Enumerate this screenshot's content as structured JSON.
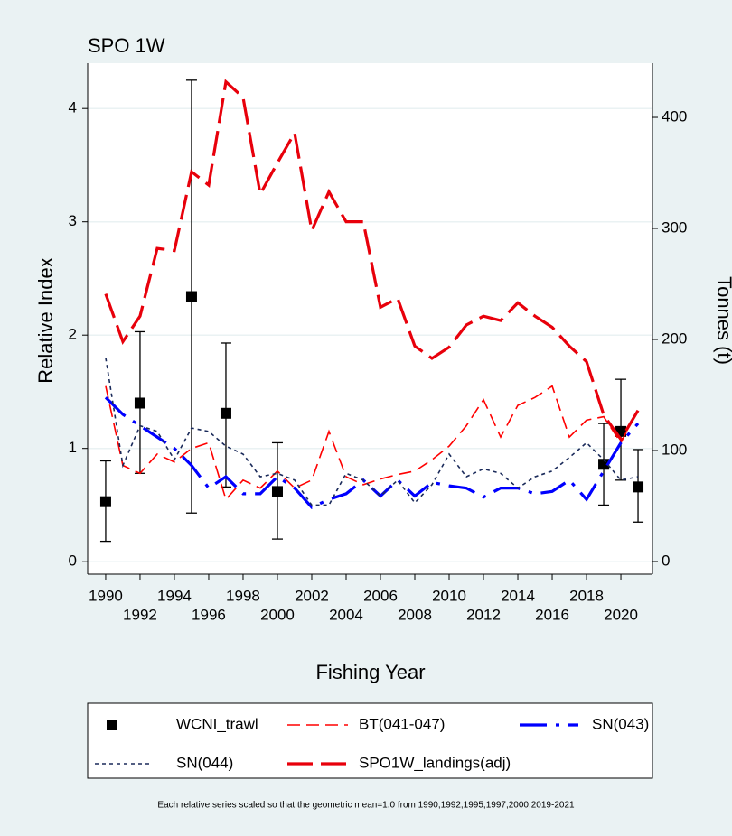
{
  "chart_data": {
    "type": "line",
    "title": "SPO 1W",
    "x_label": "Fishing Year",
    "y_label": "Relative Index",
    "y2_label": "Tonnes (t)",
    "note": "Each relative series scaled so that the geometric mean=1.0 from 1990,1992,1995,1997,2000,2019-2021",
    "x": [
      1990,
      1991,
      1992,
      1993,
      1994,
      1995,
      1996,
      1997,
      1998,
      1999,
      2000,
      2001,
      2002,
      2003,
      2004,
      2005,
      2006,
      2007,
      2008,
      2009,
      2010,
      2011,
      2012,
      2013,
      2014,
      2015,
      2016,
      2017,
      2018,
      2019,
      2020,
      2021
    ],
    "xlim": [
      1988.95,
      2021.84
    ],
    "xticks": [
      1990,
      1992,
      1994,
      1996,
      1998,
      2000,
      2002,
      2004,
      2006,
      2008,
      2010,
      2012,
      2014,
      2016,
      2018,
      2020
    ],
    "ylim": [
      -0.11,
      4.4
    ],
    "yticks": [
      0,
      1,
      2,
      3,
      4
    ],
    "y2lim": [
      -11.4,
      448.8
    ],
    "y2ticks": [
      0,
      100,
      200,
      300,
      400
    ],
    "grid": true,
    "series": [
      {
        "name": "WCNI_trawl",
        "color": "#000000",
        "style": "marker",
        "x": [
          1990,
          1992,
          1995,
          1997,
          2000,
          2019,
          2020,
          2021
        ],
        "values": [
          0.53,
          1.4,
          2.34,
          1.31,
          0.62,
          0.86,
          1.15,
          0.66
        ],
        "lower": [
          0.18,
          0.78,
          0.43,
          0.66,
          0.2,
          0.5,
          0.72,
          0.35
        ],
        "upper": [
          0.89,
          2.03,
          4.25,
          1.93,
          1.05,
          1.22,
          1.61,
          0.99
        ]
      },
      {
        "name": "BT(041-047)",
        "color": "#ff0000",
        "style": "dash",
        "values": [
          1.55,
          0.85,
          0.78,
          0.95,
          0.88,
          1.0,
          1.05,
          0.55,
          0.72,
          0.65,
          0.8,
          0.65,
          0.72,
          1.15,
          0.75,
          0.68,
          0.73,
          0.77,
          0.8,
          0.9,
          1.02,
          1.2,
          1.43,
          1.1,
          1.38,
          1.45,
          1.55,
          1.1,
          1.25,
          1.28,
          1.05,
          1.35
        ]
      },
      {
        "name": "SN(043)",
        "color": "#0000ff",
        "style": "longdashdot",
        "values": [
          1.45,
          1.3,
          1.2,
          1.1,
          1.0,
          0.85,
          0.65,
          0.75,
          0.6,
          0.6,
          0.75,
          0.65,
          0.48,
          0.55,
          0.6,
          0.72,
          0.58,
          0.72,
          0.58,
          0.7,
          0.67,
          0.65,
          0.57,
          0.65,
          0.65,
          0.6,
          0.62,
          0.72,
          0.55,
          0.8,
          1.05,
          1.22
        ]
      },
      {
        "name": "SN(044)",
        "color": "#1a2a5a",
        "style": "shortdash",
        "values": [
          1.8,
          0.85,
          1.2,
          1.15,
          0.9,
          1.18,
          1.15,
          1.02,
          0.95,
          0.75,
          0.78,
          0.72,
          0.5,
          0.5,
          0.78,
          0.72,
          0.58,
          0.72,
          0.52,
          0.68,
          0.95,
          0.75,
          0.82,
          0.78,
          0.65,
          0.75,
          0.8,
          0.92,
          1.05,
          0.9,
          0.72,
          0.75
        ]
      },
      {
        "name": "SPO1W_landings(adj)",
        "color": "#e8000b",
        "style": "longdash",
        "axis": "y2",
        "values": [
          241,
          198,
          221,
          282,
          280,
          351,
          339,
          432,
          418,
          331,
          359,
          386,
          298,
          333,
          306,
          306,
          229,
          237,
          194,
          183,
          193,
          213,
          221,
          217,
          233,
          221,
          211,
          194,
          180,
          132,
          110,
          136
        ]
      }
    ]
  }
}
